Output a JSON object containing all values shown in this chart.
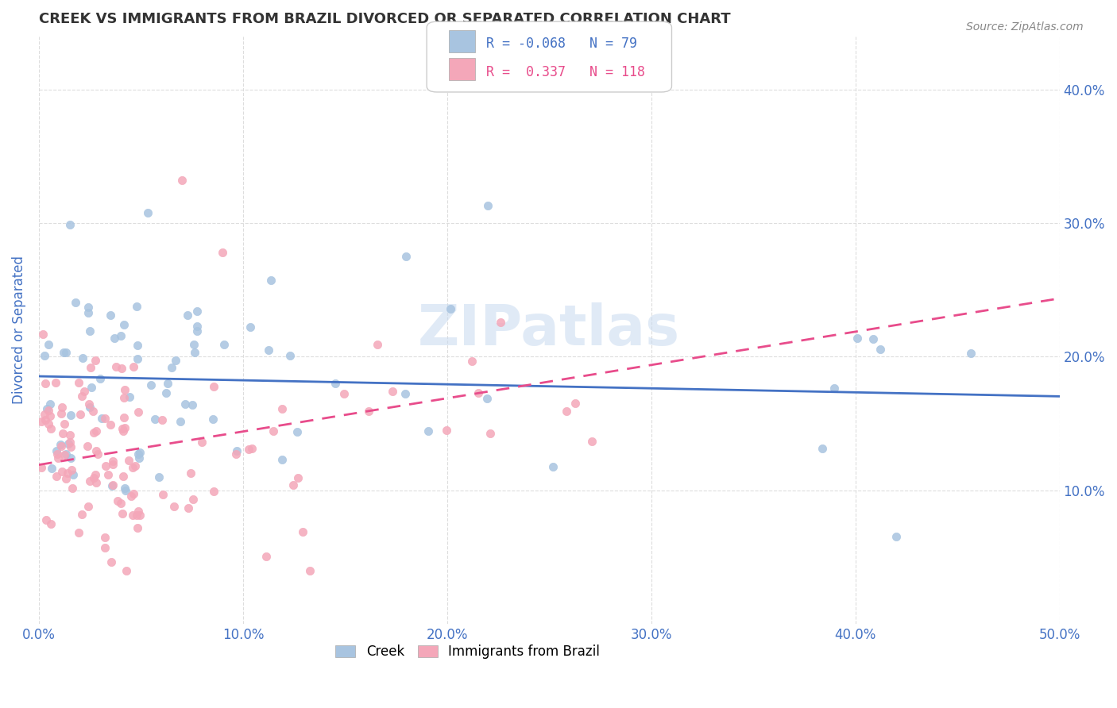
{
  "title": "CREEK VS IMMIGRANTS FROM BRAZIL DIVORCED OR SEPARATED CORRELATION CHART",
  "source": "Source: ZipAtlas.com",
  "xlabel": "",
  "ylabel": "Divorced or Separated",
  "xlim": [
    0.0,
    0.5
  ],
  "ylim": [
    0.0,
    0.44
  ],
  "xticks": [
    0.0,
    0.1,
    0.2,
    0.3,
    0.4,
    0.5
  ],
  "yticks": [
    0.1,
    0.2,
    0.3,
    0.4
  ],
  "xticklabels": [
    "0.0%",
    "10.0%",
    "20.0%",
    "30.0%",
    "40.0%",
    "50.0%"
  ],
  "yticklabels": [
    "10.0%",
    "20.0%",
    "30.0%",
    "40.0%"
  ],
  "watermark": "ZIPatlas",
  "creek_color": "#a8c4e0",
  "brazil_color": "#f4a7b9",
  "creek_line_color": "#4472c4",
  "brazil_line_color": "#e84c8b",
  "legend_R_creek": "-0.068",
  "legend_N_creek": "79",
  "legend_R_brazil": "0.337",
  "legend_N_brazil": "118",
  "creek_R": -0.068,
  "creek_N": 79,
  "brazil_R": 0.337,
  "brazil_N": 118,
  "background_color": "#ffffff",
  "grid_color": "#dddddd",
  "title_color": "#333333",
  "axis_label_color": "#4472c4",
  "tick_color": "#4472c4"
}
